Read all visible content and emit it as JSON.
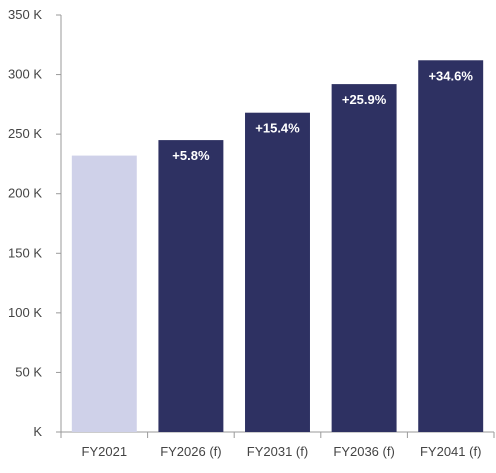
{
  "chart_data": {
    "type": "bar",
    "categories": [
      "FY2021",
      "FY2026 (f)",
      "FY2031 (f)",
      "FY2036 (f)",
      "FY2041 (f)"
    ],
    "values": [
      232,
      245,
      268,
      292,
      312
    ],
    "data_labels": [
      "",
      "+5.8%",
      "+15.4%",
      "+25.9%",
      "+34.6%"
    ],
    "yticks": [
      0,
      50,
      100,
      150,
      200,
      250,
      300,
      350
    ],
    "ytick_labels": [
      "K",
      "50 K",
      "100 K",
      "150 K",
      "200 K",
      "250 K",
      "300 K",
      "350 K"
    ],
    "ylim": [
      0,
      350
    ],
    "title": "",
    "xlabel": "",
    "ylabel": "",
    "grid": false,
    "bar_colors": [
      "#cfd1e9",
      "#2e3162",
      "#2e3162",
      "#2e3162",
      "#2e3162"
    ],
    "axis_color": "#9a9a9a"
  }
}
